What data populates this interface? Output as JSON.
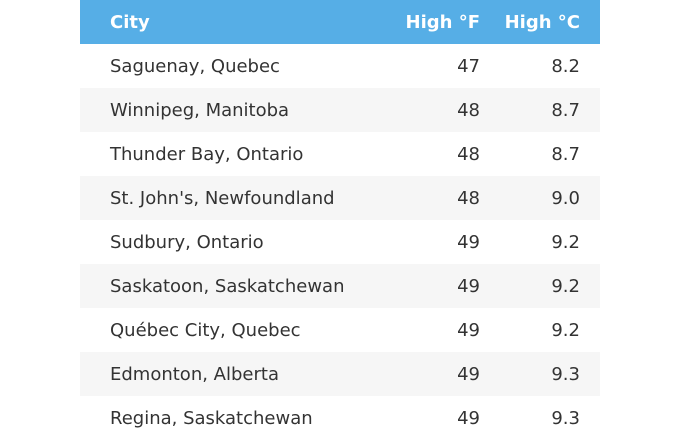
{
  "table": {
    "header": [
      "City",
      "High °F",
      "High °C"
    ],
    "rows": [
      [
        "Saguenay, Quebec",
        "47",
        "8.2"
      ],
      [
        "Winnipeg, Manitoba",
        "48",
        "8.7"
      ],
      [
        "Thunder Bay, Ontario",
        "48",
        "8.7"
      ],
      [
        "St. John's, Newfoundland",
        "48",
        "9.0"
      ],
      [
        "Sudbury, Ontario",
        "49",
        "9.2"
      ],
      [
        "Saskatoon, Saskatchewan",
        "49",
        "9.2"
      ],
      [
        "Québec City, Quebec",
        "49",
        "9.2"
      ],
      [
        "Edmonton, Alberta",
        "49",
        "9.3"
      ],
      [
        "Regina, Saskatchewan",
        "49",
        "9.3"
      ]
    ]
  }
}
